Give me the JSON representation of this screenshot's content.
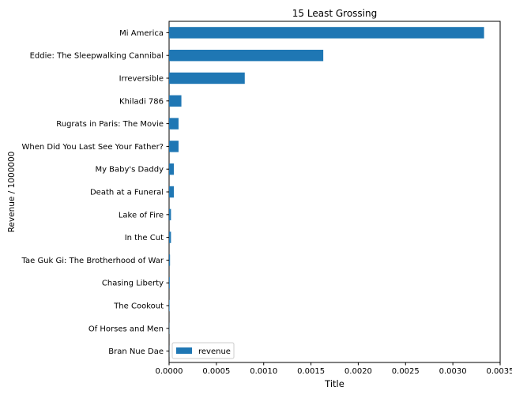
{
  "chart_data": {
    "type": "bar",
    "orientation": "horizontal",
    "title": "15 Least Grossing",
    "xlabel": "Title",
    "ylabel": "Revenue / 1000000",
    "categories": [
      "Mi America",
      "Eddie: The Sleepwalking Cannibal",
      "Irreversible",
      "Khiladi 786",
      "Rugrats in Paris: The Movie",
      "When Did You Last See Your Father?",
      "My Baby's Daddy",
      "Death at a Funeral",
      "Lake of Fire",
      "In the Cut",
      "Tae Guk Gi: The Brotherhood of War",
      "Chasing Liberty",
      "The Cookout",
      "Of Horses and Men",
      "Bran Nue Dae"
    ],
    "series": [
      {
        "name": "revenue",
        "color": "#1f77b4",
        "values": [
          0.00333,
          0.00163,
          0.0008,
          0.00013,
          0.0001,
          0.0001,
          5e-05,
          5e-05,
          2e-05,
          2e-05,
          1e-05,
          7e-06,
          5e-06,
          2e-06,
          1e-06
        ]
      }
    ],
    "xlim": [
      0,
      0.0035
    ],
    "xticks": [
      "0.0000",
      "0.0005",
      "0.0010",
      "0.0015",
      "0.0020",
      "0.0025",
      "0.0030",
      "0.0035"
    ],
    "grid": false,
    "legend_position": "lower-left"
  }
}
